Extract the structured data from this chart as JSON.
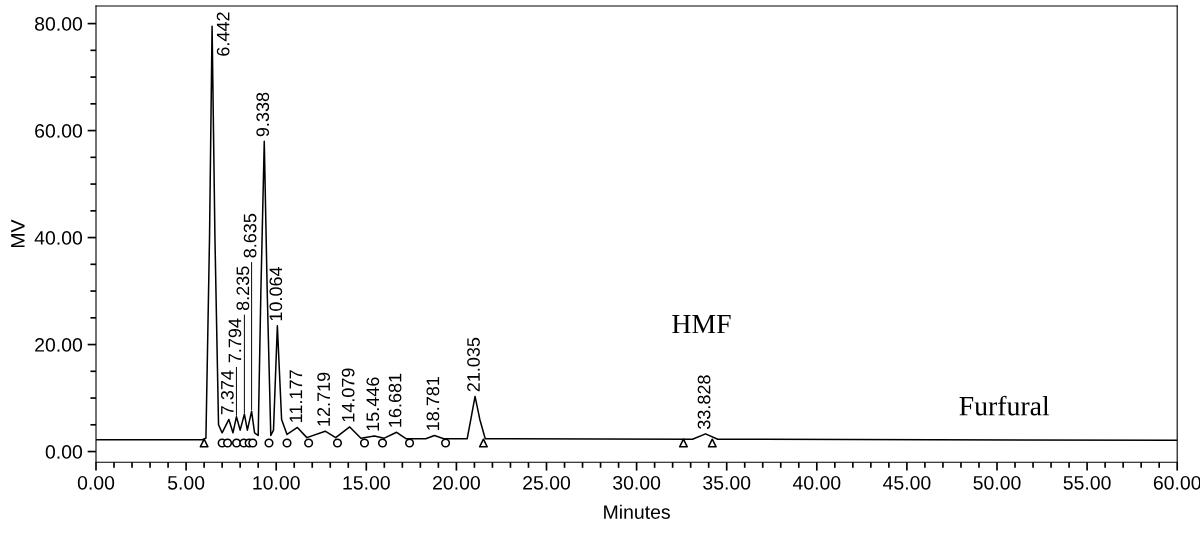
{
  "chart_data": {
    "type": "line",
    "xlabel": "Minutes",
    "ylabel": "MV",
    "xlim": [
      0,
      60
    ],
    "ylim": [
      -2,
      83.3
    ],
    "xticks": [
      {
        "value": 0,
        "label": "0.00"
      },
      {
        "value": 1,
        "label": null
      },
      {
        "value": 2,
        "label": null
      },
      {
        "value": 3,
        "label": null
      },
      {
        "value": 4,
        "label": null
      },
      {
        "value": 5,
        "label": "5.00"
      },
      {
        "value": 6,
        "label": null
      },
      {
        "value": 7,
        "label": null
      },
      {
        "value": 8,
        "label": null
      },
      {
        "value": 9,
        "label": null
      },
      {
        "value": 10,
        "label": "10.00"
      },
      {
        "value": 11,
        "label": null
      },
      {
        "value": 12,
        "label": null
      },
      {
        "value": 13,
        "label": null
      },
      {
        "value": 14,
        "label": null
      },
      {
        "value": 15,
        "label": "15.00"
      },
      {
        "value": 16,
        "label": null
      },
      {
        "value": 17,
        "label": null
      },
      {
        "value": 18,
        "label": null
      },
      {
        "value": 19,
        "label": null
      },
      {
        "value": 20,
        "label": "20.00"
      },
      {
        "value": 21,
        "label": null
      },
      {
        "value": 22,
        "label": null
      },
      {
        "value": 23,
        "label": null
      },
      {
        "value": 24,
        "label": null
      },
      {
        "value": 25,
        "label": "25.00"
      },
      {
        "value": 26,
        "label": null
      },
      {
        "value": 27,
        "label": null
      },
      {
        "value": 28,
        "label": null
      },
      {
        "value": 29,
        "label": null
      },
      {
        "value": 30,
        "label": "30.00"
      },
      {
        "value": 31,
        "label": null
      },
      {
        "value": 32,
        "label": null
      },
      {
        "value": 33,
        "label": null
      },
      {
        "value": 34,
        "label": null
      },
      {
        "value": 35,
        "label": "35.00"
      },
      {
        "value": 36,
        "label": null
      },
      {
        "value": 37,
        "label": null
      },
      {
        "value": 38,
        "label": null
      },
      {
        "value": 39,
        "label": null
      },
      {
        "value": 40,
        "label": "40.00"
      },
      {
        "value": 41,
        "label": null
      },
      {
        "value": 42,
        "label": null
      },
      {
        "value": 43,
        "label": null
      },
      {
        "value": 44,
        "label": null
      },
      {
        "value": 45,
        "label": "45.00"
      },
      {
        "value": 46,
        "label": null
      },
      {
        "value": 47,
        "label": null
      },
      {
        "value": 48,
        "label": null
      },
      {
        "value": 49,
        "label": null
      },
      {
        "value": 50,
        "label": "50.00"
      },
      {
        "value": 51,
        "label": null
      },
      {
        "value": 52,
        "label": null
      },
      {
        "value": 53,
        "label": null
      },
      {
        "value": 54,
        "label": null
      },
      {
        "value": 55,
        "label": "55.00"
      },
      {
        "value": 56,
        "label": null
      },
      {
        "value": 57,
        "label": null
      },
      {
        "value": 58,
        "label": null
      },
      {
        "value": 59,
        "label": null
      },
      {
        "value": 60,
        "label": "60.00"
      }
    ],
    "yticks": [
      {
        "value": 0,
        "label": "0.00"
      },
      {
        "value": 5,
        "label": null
      },
      {
        "value": 10,
        "label": null
      },
      {
        "value": 15,
        "label": null
      },
      {
        "value": 20,
        "label": "20.00"
      },
      {
        "value": 25,
        "label": null
      },
      {
        "value": 30,
        "label": null
      },
      {
        "value": 35,
        "label": null
      },
      {
        "value": 40,
        "label": "40.00"
      },
      {
        "value": 45,
        "label": null
      },
      {
        "value": 50,
        "label": null
      },
      {
        "value": 55,
        "label": null
      },
      {
        "value": 60,
        "label": "60.00"
      },
      {
        "value": 65,
        "label": null
      },
      {
        "value": 70,
        "label": null
      },
      {
        "value": 75,
        "label": null
      },
      {
        "value": 80,
        "label": "80.00"
      }
    ],
    "grid": false,
    "legend": false,
    "series": [
      {
        "color": "#000000",
        "x": [
          0,
          5.9,
          6.1,
          6.3,
          6.442,
          6.6,
          6.8,
          7.0,
          7.374,
          7.6,
          7.794,
          8.0,
          8.235,
          8.4,
          8.635,
          8.8,
          9.0,
          9.15,
          9.338,
          9.5,
          9.7,
          9.85,
          10.064,
          10.3,
          10.6,
          11.177,
          11.7,
          12.719,
          13.3,
          14.079,
          14.7,
          15.446,
          16.0,
          16.681,
          17.2,
          18.3,
          18.781,
          19.3,
          20.6,
          20.8,
          21.035,
          21.3,
          21.6,
          33.1,
          33.828,
          34.5,
          60
        ],
        "values": [
          2.2,
          2.2,
          2.5,
          40,
          79.5,
          40,
          5,
          3.5,
          6,
          3.5,
          6.5,
          4,
          7,
          4,
          7.5,
          3.5,
          3,
          30,
          58,
          30,
          3,
          4,
          23.5,
          6,
          3.2,
          4.5,
          2.6,
          3.8,
          2.6,
          4.6,
          2.5,
          2.9,
          2.5,
          3.6,
          2.4,
          2.4,
          3.0,
          2.4,
          2.4,
          6,
          10.3,
          6,
          2.4,
          2.3,
          3.3,
          2.3,
          2.1
        ]
      },
      {
        "type": "scatter",
        "color": "#000000",
        "marker": "triangle",
        "x": [
          6.0,
          21.5,
          32.6,
          34.2
        ],
        "values": [
          1.6,
          1.6,
          1.6,
          1.6
        ]
      },
      {
        "type": "scatter",
        "color": "#000000",
        "marker": "circle",
        "x": [
          7.0,
          7.3,
          7.8,
          8.2,
          8.5,
          8.7,
          9.6,
          10.6,
          11.8,
          13.4,
          14.9,
          15.9,
          17.4,
          19.4
        ],
        "values": [
          1.6,
          1.6,
          1.6,
          1.6,
          1.6,
          1.6,
          1.6,
          1.6,
          1.6,
          1.6,
          1.6,
          1.6,
          1.6,
          1.6
        ]
      }
    ],
    "annotations": [
      {
        "text": "6.442",
        "x": 6.442,
        "y": 79.5
      },
      {
        "text": "7.374",
        "x": 7.374,
        "y": 6
      },
      {
        "text": "7.794",
        "x": 7.794,
        "y": 6.5
      },
      {
        "text": "8.235",
        "x": 8.235,
        "y": 7
      },
      {
        "text": "8.635",
        "x": 8.635,
        "y": 7.5
      },
      {
        "text": "9.338",
        "x": 9.338,
        "y": 58
      },
      {
        "text": "10.064",
        "x": 10.064,
        "y": 23.5
      },
      {
        "text": "11.177",
        "x": 11.177,
        "y": 4.5
      },
      {
        "text": "12.719",
        "x": 12.719,
        "y": 3.8
      },
      {
        "text": "14.079",
        "x": 14.079,
        "y": 4.6
      },
      {
        "text": "15.446",
        "x": 15.446,
        "y": 2.9
      },
      {
        "text": "16.681",
        "x": 16.681,
        "y": 3.6
      },
      {
        "text": "18.781",
        "x": 18.781,
        "y": 3.0
      },
      {
        "text": "21.035",
        "x": 21.035,
        "y": 10.3
      },
      {
        "text": "33.828",
        "x": 33.828,
        "y": 3.3
      },
      "HMF",
      "Furfural"
    ]
  }
}
